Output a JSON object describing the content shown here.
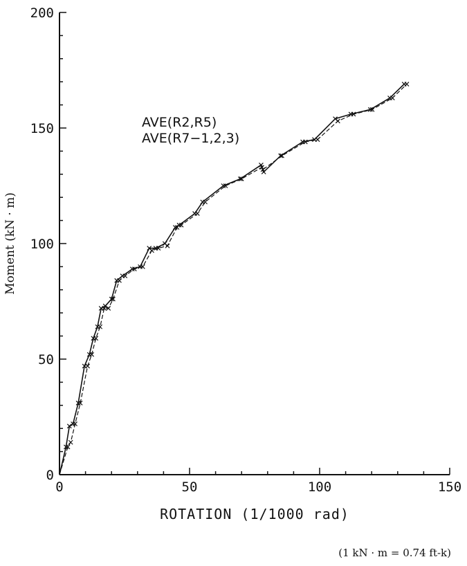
{
  "chart_data": {
    "type": "line",
    "xlabel": "ROTATION  (1/1000 rad)",
    "ylabel": "Moment (kN · m)",
    "xlim": [
      0,
      150
    ],
    "ylim": [
      0,
      200
    ],
    "xticks": [
      "0",
      "50",
      "100",
      "150"
    ],
    "yticks": [
      "0",
      "50",
      "100",
      "150",
      "200"
    ],
    "grid": false,
    "legend_position": "upper-left, inside plot",
    "note": "(1 kN · m = 0.74 ft-k)",
    "series": [
      {
        "name": "AVE(R2,R5)",
        "style": "solid",
        "x": [
          0,
          2.5,
          3.8,
          5.2,
          7.2,
          9.6,
          11.5,
          13.0,
          14.6,
          16.0,
          17.6,
          20.0,
          22.0,
          24.2,
          28.0,
          31.0,
          34.5,
          37.0,
          40.5,
          44.5,
          46.0,
          52.0,
          55.0,
          63.0,
          69.5,
          77.5,
          78.5,
          85.0,
          93.5,
          98.0,
          106.0,
          112.0,
          119.5,
          127.0,
          132.5
        ],
        "y": [
          0,
          12,
          21,
          22,
          31,
          47,
          52,
          59,
          64,
          72,
          73,
          76,
          84,
          86,
          89,
          90,
          98,
          98,
          100,
          107,
          108,
          113,
          118,
          125,
          128,
          134,
          131,
          138,
          144,
          145,
          154,
          156,
          158,
          163,
          169
        ]
      },
      {
        "name": "AVE(R7−1,2,3)",
        "style": "dashed",
        "x": [
          0,
          3.2,
          4.3,
          6.0,
          8.0,
          10.8,
          12.4,
          14.0,
          15.6,
          17.2,
          18.8,
          20.6,
          23.0,
          25.2,
          28.8,
          32.0,
          35.5,
          38.0,
          41.5,
          45.2,
          46.8,
          53.0,
          56.0,
          63.8,
          70.0,
          77.8,
          78.2,
          85.5,
          94.5,
          99.2,
          107.0,
          113.0,
          120.2,
          128.0,
          133.5
        ],
        "y": [
          0,
          12,
          14,
          22,
          31,
          47,
          52,
          59,
          64,
          72,
          72,
          76,
          84,
          86,
          89,
          90,
          97,
          98,
          99,
          107,
          108,
          113,
          118,
          125,
          128,
          133,
          132,
          138,
          144,
          145,
          153,
          156,
          158,
          163,
          169
        ]
      }
    ]
  }
}
